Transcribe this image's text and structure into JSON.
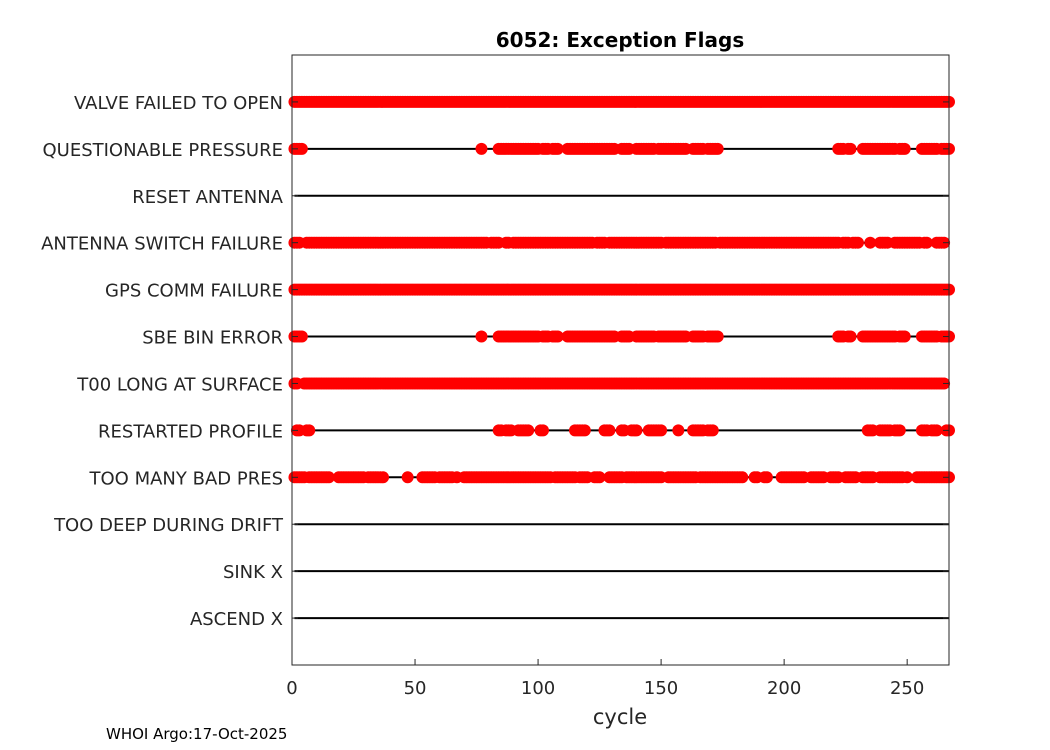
{
  "chart_data": {
    "type": "scatter",
    "title": "6052: Exception Flags",
    "xlabel": "cycle",
    "ylabel": "",
    "xlim": [
      0,
      267
    ],
    "xticks": [
      0,
      50,
      100,
      150,
      200,
      250
    ],
    "marker_color": "#ff0000",
    "line_color": "#000000",
    "series": [
      {
        "name": "VALVE FAILED TO OPEN",
        "flagged_cycle_ranges": [
          [
            1,
            267
          ]
        ]
      },
      {
        "name": "QUESTIONABLE PRESSURE",
        "flagged_cycle_ranges": [
          [
            1,
            4
          ],
          [
            77,
            77
          ],
          [
            84,
            100
          ],
          [
            102,
            104
          ],
          [
            106,
            108
          ],
          [
            112,
            131
          ],
          [
            134,
            137
          ],
          [
            140,
            147
          ],
          [
            149,
            160
          ],
          [
            163,
            167
          ],
          [
            169,
            173
          ],
          [
            222,
            224
          ],
          [
            226,
            227
          ],
          [
            232,
            245
          ],
          [
            247,
            249
          ],
          [
            256,
            262
          ],
          [
            264,
            267
          ]
        ]
      },
      {
        "name": "RESET ANTENNA",
        "flagged_cycle_ranges": []
      },
      {
        "name": "ANTENNA SWITCH FAILURE",
        "flagged_cycle_ranges": [
          [
            1,
            3
          ],
          [
            6,
            79
          ],
          [
            81,
            84
          ],
          [
            87,
            88
          ],
          [
            90,
            122
          ],
          [
            124,
            127
          ],
          [
            129,
            150
          ],
          [
            152,
            172
          ],
          [
            174,
            222
          ],
          [
            224,
            226
          ],
          [
            228,
            230
          ],
          [
            235,
            235
          ],
          [
            239,
            242
          ],
          [
            245,
            255
          ],
          [
            257,
            258
          ],
          [
            262,
            265
          ]
        ]
      },
      {
        "name": "GPS COMM FAILURE",
        "flagged_cycle_ranges": [
          [
            1,
            267
          ]
        ]
      },
      {
        "name": "SBE BIN ERROR",
        "flagged_cycle_ranges": [
          [
            1,
            4
          ],
          [
            77,
            77
          ],
          [
            84,
            100
          ],
          [
            102,
            104
          ],
          [
            106,
            108
          ],
          [
            112,
            131
          ],
          [
            134,
            137
          ],
          [
            140,
            147
          ],
          [
            149,
            160
          ],
          [
            163,
            167
          ],
          [
            169,
            173
          ],
          [
            222,
            224
          ],
          [
            226,
            227
          ],
          [
            232,
            245
          ],
          [
            247,
            249
          ],
          [
            256,
            262
          ],
          [
            264,
            267
          ]
        ]
      },
      {
        "name": "T00 LONG AT SURFACE",
        "flagged_cycle_ranges": [
          [
            1,
            2
          ],
          [
            5,
            265
          ]
        ]
      },
      {
        "name": "RESTARTED PROFILE",
        "flagged_cycle_ranges": [
          [
            2,
            3
          ],
          [
            6,
            7
          ],
          [
            84,
            85
          ],
          [
            87,
            89
          ],
          [
            92,
            96
          ],
          [
            101,
            102
          ],
          [
            115,
            119
          ],
          [
            127,
            129
          ],
          [
            134,
            135
          ],
          [
            138,
            140
          ],
          [
            145,
            150
          ],
          [
            157,
            157
          ],
          [
            163,
            167
          ],
          [
            169,
            171
          ],
          [
            234,
            236
          ],
          [
            239,
            243
          ],
          [
            245,
            247
          ],
          [
            256,
            258
          ],
          [
            260,
            262
          ],
          [
            266,
            267
          ]
        ]
      },
      {
        "name": "TOO MANY BAD PRES",
        "flagged_cycle_ranges": [
          [
            1,
            5
          ],
          [
            7,
            15
          ],
          [
            19,
            29
          ],
          [
            31,
            37
          ],
          [
            47,
            47
          ],
          [
            53,
            58
          ],
          [
            60,
            65
          ],
          [
            67,
            67
          ],
          [
            70,
            105
          ],
          [
            107,
            115
          ],
          [
            117,
            120
          ],
          [
            123,
            125
          ],
          [
            129,
            134
          ],
          [
            136,
            150
          ],
          [
            153,
            164
          ],
          [
            166,
            179
          ],
          [
            180,
            183
          ],
          [
            188,
            189
          ],
          [
            192,
            193
          ],
          [
            199,
            208
          ],
          [
            211,
            216
          ],
          [
            219,
            222
          ],
          [
            225,
            229
          ],
          [
            232,
            236
          ],
          [
            239,
            248
          ],
          [
            250,
            250
          ],
          [
            254,
            267
          ]
        ]
      },
      {
        "name": "TOO DEEP DURING DRIFT",
        "flagged_cycle_ranges": []
      },
      {
        "name": "SINK X",
        "flagged_cycle_ranges": []
      },
      {
        "name": "ASCEND X",
        "flagged_cycle_ranges": []
      }
    ],
    "cycle_range": [
      1,
      267
    ]
  },
  "footer": "WHOI Argo:17-Oct-2025"
}
